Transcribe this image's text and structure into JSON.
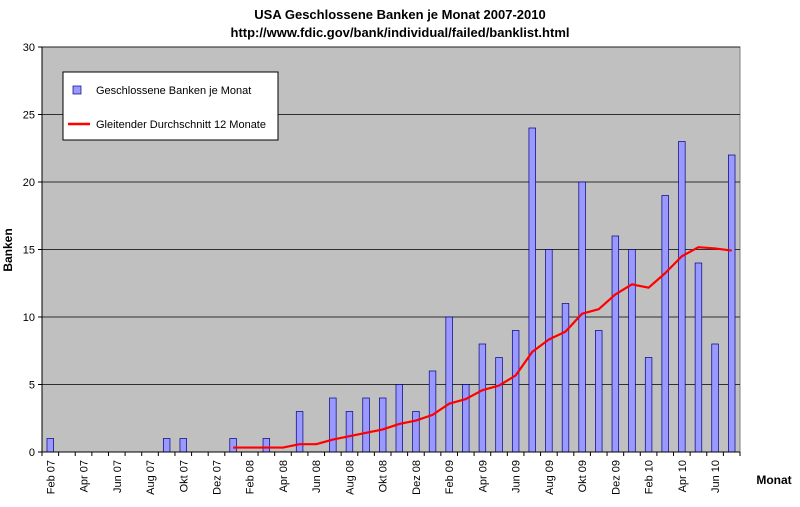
{
  "chart_data": {
    "type": "bar",
    "title": "USA Geschlossene Banken je Monat 2007-2010",
    "subtitle": "http://www.fdic.gov/bank/individual/failed/banklist.html",
    "xlabel": "Monat",
    "ylabel": "Banken",
    "ylim": [
      0,
      30
    ],
    "yticks": [
      0,
      5,
      10,
      15,
      20,
      25,
      30
    ],
    "grid": true,
    "plot_background": "#c0c0c0",
    "legend_position": "top-left",
    "categories": [
      "Feb 07",
      "Mar 07",
      "Apr 07",
      "May 07",
      "Jun 07",
      "Jul 07",
      "Aug 07",
      "Sep 07",
      "Okt 07",
      "Nov 07",
      "Dez 07",
      "Jan 08",
      "Feb 08",
      "Mar 08",
      "Apr 08",
      "May 08",
      "Jun 08",
      "Jul 08",
      "Aug 08",
      "Sep 08",
      "Okt 08",
      "Nov 08",
      "Dez 08",
      "Jan 09",
      "Feb 09",
      "Mar 09",
      "Apr 09",
      "May 09",
      "Jun 09",
      "Jul 09",
      "Aug 09",
      "Sep 09",
      "Okt 09",
      "Nov 09",
      "Dez 09",
      "Jan 10",
      "Feb 10",
      "Mar 10",
      "Apr 10",
      "May 10",
      "Jun 10",
      "Jul 10"
    ],
    "xtick_labels": [
      "Feb 07",
      "Apr 07",
      "Jun 07",
      "Aug 07",
      "Okt 07",
      "Dez 07",
      "Feb 08",
      "Apr 08",
      "Jun 08",
      "Aug 08",
      "Okt 08",
      "Dez 08",
      "Feb 09",
      "Apr 09",
      "Jun 09",
      "Aug 09",
      "Okt 09",
      "Dez 09",
      "Feb 10",
      "Apr 10",
      "Jun 10"
    ],
    "series": [
      {
        "name": "Geschlossene Banken je Monat",
        "type": "bar",
        "color": "#9999ff",
        "values": [
          1,
          0,
          0,
          0,
          0,
          0,
          0,
          1,
          1,
          0,
          0,
          1,
          0,
          1,
          0,
          3,
          0,
          4,
          3,
          4,
          4,
          5,
          3,
          6,
          10,
          5,
          8,
          7,
          9,
          24,
          15,
          11,
          20,
          9,
          16,
          15,
          7,
          19,
          23,
          14,
          8,
          22
        ]
      },
      {
        "name": "Gleitender Durchschnitt 12 Monate",
        "type": "line",
        "color": "#ff0000",
        "values": [
          null,
          null,
          null,
          null,
          null,
          null,
          null,
          null,
          null,
          null,
          null,
          0.33,
          0.33,
          0.33,
          0.33,
          0.58,
          0.58,
          0.92,
          1.17,
          1.42,
          1.67,
          2.08,
          2.33,
          2.75,
          3.58,
          3.92,
          4.58,
          4.92,
          5.67,
          7.42,
          8.33,
          8.92,
          10.25,
          10.58,
          11.67,
          12.42,
          12.17,
          13.25,
          14.5,
          15.17,
          15.08,
          14.92
        ]
      }
    ]
  }
}
